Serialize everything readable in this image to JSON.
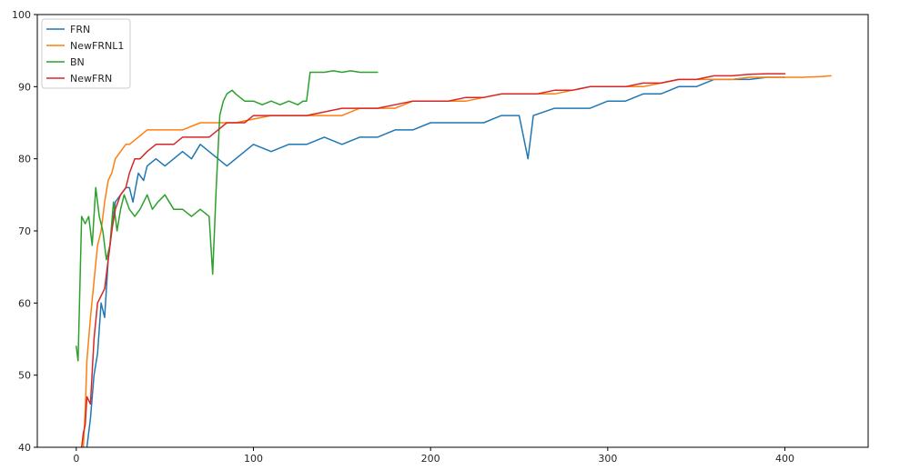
{
  "chart_data": {
    "type": "line",
    "title": "",
    "xlabel": "",
    "ylabel": "",
    "xlim": [
      -22,
      447
    ],
    "ylim": [
      40,
      100
    ],
    "xticks": [
      0,
      100,
      200,
      300,
      400
    ],
    "yticks": [
      40,
      50,
      60,
      70,
      80,
      90,
      100
    ],
    "grid": false,
    "legend_position": "upper-left",
    "series": [
      {
        "name": "FRN",
        "color": "#1f77b4",
        "points": [
          [
            6,
            40
          ],
          [
            8,
            44
          ],
          [
            10,
            50
          ],
          [
            12,
            53
          ],
          [
            14,
            60
          ],
          [
            16,
            58
          ],
          [
            18,
            66
          ],
          [
            20,
            70
          ],
          [
            22,
            74
          ],
          [
            25,
            75
          ],
          [
            28,
            76
          ],
          [
            30,
            76
          ],
          [
            32,
            74
          ],
          [
            35,
            78
          ],
          [
            38,
            77
          ],
          [
            40,
            79
          ],
          [
            45,
            80
          ],
          [
            50,
            79
          ],
          [
            55,
            80
          ],
          [
            60,
            81
          ],
          [
            65,
            80
          ],
          [
            70,
            82
          ],
          [
            75,
            81
          ],
          [
            80,
            80
          ],
          [
            85,
            79
          ],
          [
            90,
            80
          ],
          [
            95,
            81
          ],
          [
            100,
            82
          ],
          [
            110,
            81
          ],
          [
            120,
            82
          ],
          [
            130,
            82
          ],
          [
            140,
            83
          ],
          [
            150,
            82
          ],
          [
            160,
            83
          ],
          [
            170,
            83
          ],
          [
            180,
            84
          ],
          [
            190,
            84
          ],
          [
            200,
            85
          ],
          [
            210,
            85
          ],
          [
            220,
            85
          ],
          [
            230,
            85
          ],
          [
            240,
            86
          ],
          [
            250,
            86
          ],
          [
            255,
            80
          ],
          [
            258,
            86
          ],
          [
            270,
            87
          ],
          [
            280,
            87
          ],
          [
            290,
            87
          ],
          [
            300,
            88
          ],
          [
            310,
            88
          ],
          [
            320,
            89
          ],
          [
            330,
            89
          ],
          [
            340,
            90
          ],
          [
            350,
            90
          ],
          [
            360,
            91
          ],
          [
            370,
            91
          ],
          [
            380,
            91
          ],
          [
            390,
            91.3
          ],
          [
            400,
            91.3
          ]
        ]
      },
      {
        "name": "NewFRNL1",
        "color": "#ff7f0e",
        "points": [
          [
            4,
            40
          ],
          [
            5,
            45
          ],
          [
            6,
            52
          ],
          [
            8,
            58
          ],
          [
            10,
            63
          ],
          [
            12,
            68
          ],
          [
            14,
            70
          ],
          [
            16,
            74
          ],
          [
            18,
            77
          ],
          [
            20,
            78
          ],
          [
            22,
            80
          ],
          [
            25,
            81
          ],
          [
            28,
            82
          ],
          [
            30,
            82
          ],
          [
            35,
            83
          ],
          [
            40,
            84
          ],
          [
            45,
            84
          ],
          [
            50,
            84
          ],
          [
            60,
            84
          ],
          [
            70,
            85
          ],
          [
            80,
            85
          ],
          [
            90,
            85
          ],
          [
            100,
            85.5
          ],
          [
            110,
            86
          ],
          [
            120,
            86
          ],
          [
            130,
            86
          ],
          [
            140,
            86
          ],
          [
            150,
            86
          ],
          [
            160,
            87
          ],
          [
            170,
            87
          ],
          [
            180,
            87
          ],
          [
            190,
            88
          ],
          [
            200,
            88
          ],
          [
            210,
            88
          ],
          [
            220,
            88
          ],
          [
            230,
            88.5
          ],
          [
            240,
            89
          ],
          [
            250,
            89
          ],
          [
            260,
            89
          ],
          [
            270,
            89
          ],
          [
            280,
            89.5
          ],
          [
            290,
            90
          ],
          [
            300,
            90
          ],
          [
            310,
            90
          ],
          [
            320,
            90
          ],
          [
            330,
            90.5
          ],
          [
            340,
            91
          ],
          [
            350,
            91
          ],
          [
            360,
            91
          ],
          [
            370,
            91
          ],
          [
            380,
            91.3
          ],
          [
            390,
            91.3
          ],
          [
            400,
            91.3
          ],
          [
            410,
            91.3
          ],
          [
            420,
            91.4
          ],
          [
            426,
            91.5
          ]
        ]
      },
      {
        "name": "BN",
        "color": "#2ca02c",
        "points": [
          [
            0,
            54
          ],
          [
            1,
            52
          ],
          [
            3,
            72
          ],
          [
            5,
            71
          ],
          [
            7,
            72
          ],
          [
            9,
            68
          ],
          [
            11,
            76
          ],
          [
            13,
            72
          ],
          [
            15,
            70
          ],
          [
            17,
            66
          ],
          [
            19,
            68
          ],
          [
            21,
            74
          ],
          [
            23,
            70
          ],
          [
            25,
            73
          ],
          [
            27,
            75
          ],
          [
            30,
            73
          ],
          [
            33,
            72
          ],
          [
            36,
            73
          ],
          [
            40,
            75
          ],
          [
            43,
            73
          ],
          [
            46,
            74
          ],
          [
            50,
            75
          ],
          [
            55,
            73
          ],
          [
            60,
            73
          ],
          [
            65,
            72
          ],
          [
            70,
            73
          ],
          [
            75,
            72
          ],
          [
            77,
            64
          ],
          [
            79,
            76
          ],
          [
            81,
            86
          ],
          [
            83,
            88
          ],
          [
            85,
            89
          ],
          [
            88,
            89.5
          ],
          [
            90,
            89
          ],
          [
            95,
            88
          ],
          [
            100,
            88
          ],
          [
            105,
            87.5
          ],
          [
            110,
            88
          ],
          [
            115,
            87.5
          ],
          [
            120,
            88
          ],
          [
            125,
            87.5
          ],
          [
            128,
            88
          ],
          [
            130,
            88
          ],
          [
            132,
            92
          ],
          [
            135,
            92
          ],
          [
            140,
            92
          ],
          [
            145,
            92.2
          ],
          [
            150,
            92
          ],
          [
            155,
            92.2
          ],
          [
            160,
            92
          ],
          [
            165,
            92
          ],
          [
            170,
            92
          ]
        ]
      },
      {
        "name": "NewFRN",
        "color": "#d62728",
        "points": [
          [
            3,
            40
          ],
          [
            4,
            42
          ],
          [
            5,
            43
          ],
          [
            6,
            47
          ],
          [
            8,
            46
          ],
          [
            10,
            55
          ],
          [
            12,
            60
          ],
          [
            14,
            61
          ],
          [
            16,
            62
          ],
          [
            18,
            66
          ],
          [
            20,
            70
          ],
          [
            22,
            73
          ],
          [
            25,
            75
          ],
          [
            28,
            76
          ],
          [
            30,
            78
          ],
          [
            33,
            80
          ],
          [
            36,
            80
          ],
          [
            40,
            81
          ],
          [
            45,
            82
          ],
          [
            50,
            82
          ],
          [
            55,
            82
          ],
          [
            60,
            83
          ],
          [
            65,
            83
          ],
          [
            70,
            83
          ],
          [
            75,
            83
          ],
          [
            80,
            84
          ],
          [
            85,
            85
          ],
          [
            90,
            85
          ],
          [
            95,
            85
          ],
          [
            100,
            86
          ],
          [
            110,
            86
          ],
          [
            120,
            86
          ],
          [
            130,
            86
          ],
          [
            140,
            86.5
          ],
          [
            150,
            87
          ],
          [
            160,
            87
          ],
          [
            170,
            87
          ],
          [
            180,
            87.5
          ],
          [
            190,
            88
          ],
          [
            200,
            88
          ],
          [
            210,
            88
          ],
          [
            220,
            88.5
          ],
          [
            230,
            88.5
          ],
          [
            240,
            89
          ],
          [
            250,
            89
          ],
          [
            260,
            89
          ],
          [
            270,
            89.5
          ],
          [
            280,
            89.5
          ],
          [
            290,
            90
          ],
          [
            300,
            90
          ],
          [
            310,
            90
          ],
          [
            320,
            90.5
          ],
          [
            330,
            90.5
          ],
          [
            340,
            91
          ],
          [
            350,
            91
          ],
          [
            360,
            91.5
          ],
          [
            370,
            91.5
          ],
          [
            380,
            91.7
          ],
          [
            390,
            91.8
          ],
          [
            400,
            91.8
          ]
        ]
      }
    ]
  }
}
